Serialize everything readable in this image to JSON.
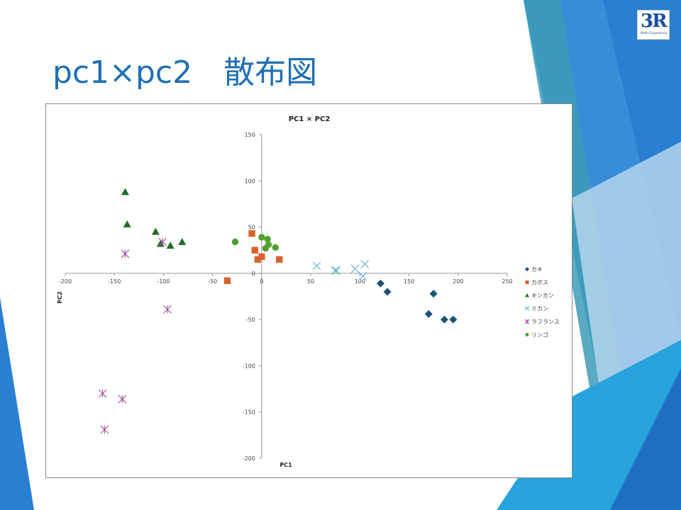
{
  "slide": {
    "title": "pc1×pc2　散布図",
    "logo": {
      "text": "3R",
      "subtext": "Medic Engineering"
    },
    "accent_color": "#1f6fb5"
  },
  "chart_data": {
    "type": "scatter",
    "title": "PC1 × PC2",
    "xlabel": "PC1",
    "ylabel": "PC2",
    "xlim": [
      -200,
      250
    ],
    "ylim": [
      -200,
      150
    ],
    "xticks": [
      -200,
      -150,
      -100,
      -50,
      0,
      50,
      100,
      150,
      200,
      250
    ],
    "yticks": [
      -200,
      -150,
      -100,
      -50,
      0,
      50,
      100,
      150
    ],
    "grid": false,
    "legend_position": "right",
    "series": [
      {
        "name": "カキ",
        "marker": "diamond",
        "color": "#1a5276",
        "points": [
          [
            121,
            -11
          ],
          [
            128,
            -20
          ],
          [
            175,
            -22
          ],
          [
            170,
            -44
          ],
          [
            186,
            -50
          ],
          [
            195,
            -50
          ]
        ]
      },
      {
        "name": "カボス",
        "marker": "square",
        "color": "#d9622b",
        "points": [
          [
            -10,
            43
          ],
          [
            -7,
            25
          ],
          [
            -4,
            15
          ],
          [
            0,
            18
          ],
          [
            18,
            15
          ],
          [
            -35,
            -8
          ]
        ]
      },
      {
        "name": "キンカン",
        "marker": "triangle",
        "color": "#1e6b2a",
        "points": [
          [
            -139,
            88
          ],
          [
            -137,
            53
          ],
          [
            -108,
            45
          ],
          [
            -103,
            32
          ],
          [
            -93,
            30
          ],
          [
            -81,
            34
          ]
        ]
      },
      {
        "name": "ミカン",
        "marker": "x",
        "color": "#6bb8d6",
        "points": [
          [
            56,
            8
          ],
          [
            75,
            3
          ],
          [
            76,
            3
          ],
          [
            95,
            5
          ],
          [
            105,
            10
          ],
          [
            103,
            -3
          ]
        ]
      },
      {
        "name": "ラフランス",
        "marker": "asterisk",
        "color": "#a04aa0",
        "points": [
          [
            -139,
            21
          ],
          [
            -101,
            34
          ],
          [
            -96,
            -39
          ],
          [
            -162,
            -130
          ],
          [
            -142,
            -136
          ],
          [
            -160,
            -169
          ]
        ]
      },
      {
        "name": "リンゴ",
        "marker": "circle",
        "color": "#4ea12e",
        "points": [
          [
            -27,
            34
          ],
          [
            0,
            39
          ],
          [
            6,
            37
          ],
          [
            7,
            31
          ],
          [
            4,
            27
          ],
          [
            14,
            28
          ]
        ]
      }
    ]
  }
}
